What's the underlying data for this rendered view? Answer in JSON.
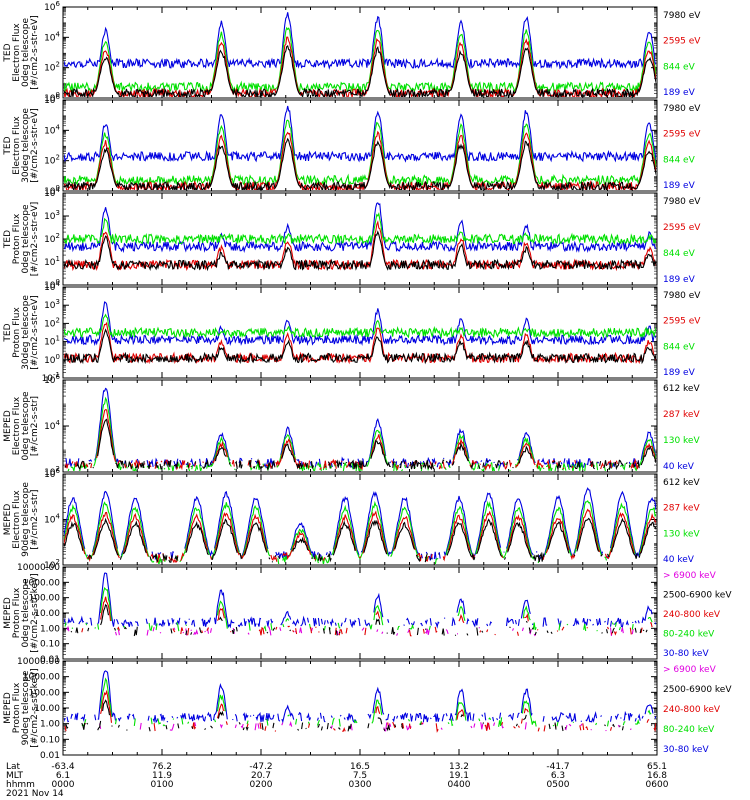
{
  "colors": {
    "black": "#000000",
    "red": "#e00000",
    "green": "#00e000",
    "blue": "#0000e0",
    "magenta": "#e000e0"
  },
  "chart_data": {
    "type": "line",
    "x_axis": {
      "rows": [
        {
          "label": "Lat",
          "values": [
            "-63.4",
            "76.2",
            "-47.2",
            "16.5",
            "13.2",
            "-41.7",
            "65.1"
          ]
        },
        {
          "label": "MLT",
          "values": [
            "6.1",
            "11.9",
            "20.7",
            "7.5",
            "19.1",
            "6.3",
            "16.8"
          ]
        },
        {
          "label": "hhmm",
          "values": [
            "0000",
            "0100",
            "0200",
            "0300",
            "0400",
            "0500",
            "0600"
          ]
        }
      ],
      "date": "2021 Nov 14",
      "range_hours": [
        0,
        6
      ]
    },
    "panels": [
      {
        "ylabel": [
          "TED",
          "Electron Flux",
          "0deg telescope",
          "[#/cm2-s-str-eV]"
        ],
        "scale": "log",
        "ylim": [
          1,
          1000000
        ],
        "ticks": [
          {
            "v": 1,
            "t": "10",
            "e": "0"
          },
          {
            "v": 100,
            "t": "10",
            "e": "2"
          },
          {
            "v": 10000,
            "t": "10",
            "e": "4"
          },
          {
            "v": 1000000,
            "t": "10",
            "e": "6"
          }
        ],
        "legend": [
          {
            "text": "7980 eV",
            "color": "black"
          },
          {
            "text": "2595 eV",
            "color": "red"
          },
          {
            "text": "844 eV",
            "color": "green"
          },
          {
            "text": "189 eV",
            "color": "blue"
          }
        ],
        "peaks": [
          0.43,
          1.6,
          2.27,
          3.18,
          4.02,
          4.68,
          5.92
        ],
        "peakAmp": [
          0.8,
          0.9,
          1.0,
          0.95,
          0.9,
          0.95,
          0.8
        ]
      },
      {
        "ylabel": [
          "TED",
          "Electron Flux",
          "30deg telescope",
          "[#/cm2-s-str-eV]"
        ],
        "scale": "log",
        "ylim": [
          1,
          1000000
        ],
        "ticks": [
          {
            "v": 1,
            "t": "10",
            "e": "0"
          },
          {
            "v": 100,
            "t": "10",
            "e": "2"
          },
          {
            "v": 10000,
            "t": "10",
            "e": "4"
          },
          {
            "v": 1000000,
            "t": "10",
            "e": "6"
          }
        ],
        "legend": [
          {
            "text": "7980 eV",
            "color": "black"
          },
          {
            "text": "2595 eV",
            "color": "red"
          },
          {
            "text": "844 eV",
            "color": "green"
          },
          {
            "text": "189 eV",
            "color": "blue"
          }
        ],
        "peaks": [
          0.43,
          1.6,
          2.27,
          3.18,
          4.02,
          4.68,
          5.92
        ],
        "peakAmp": [
          0.8,
          0.9,
          1.0,
          0.95,
          0.9,
          0.95,
          0.8
        ]
      },
      {
        "ylabel": [
          "TED",
          "Proton Flux",
          "0deg telescope",
          "[#/cm2-s-str-eV]"
        ],
        "scale": "log",
        "ylim": [
          1,
          10000
        ],
        "ticks": [
          {
            "v": 1,
            "t": "10",
            "e": "0"
          },
          {
            "v": 10,
            "t": "10",
            "e": "1"
          },
          {
            "v": 100,
            "t": "10",
            "e": "2"
          },
          {
            "v": 1000,
            "t": "10",
            "e": "3"
          },
          {
            "v": 10000,
            "t": "10",
            "e": "4"
          }
        ],
        "legend": [
          {
            "text": "7980 eV",
            "color": "black"
          },
          {
            "text": "2595 eV",
            "color": "red"
          },
          {
            "text": "844 eV",
            "color": "green"
          },
          {
            "text": "189 eV",
            "color": "blue"
          }
        ],
        "peaks": [
          0.43,
          1.6,
          2.27,
          3.18,
          4.02,
          4.68,
          5.92
        ],
        "peakAmp": [
          0.9,
          0.6,
          0.7,
          1.0,
          0.75,
          0.7,
          0.6
        ]
      },
      {
        "ylabel": [
          "TED",
          "Proton Flux",
          "30deg telescope",
          "[#/cm2-s-str-eV]"
        ],
        "scale": "log",
        "ylim": [
          0.1,
          10000
        ],
        "ticks": [
          {
            "v": 0.1,
            "t": "10",
            "e": "-1"
          },
          {
            "v": 1,
            "t": "10",
            "e": "0"
          },
          {
            "v": 10,
            "t": "10",
            "e": "1"
          },
          {
            "v": 100,
            "t": "10",
            "e": "2"
          },
          {
            "v": 1000,
            "t": "10",
            "e": "3"
          },
          {
            "v": 10000,
            "t": "10",
            "e": "4"
          }
        ],
        "legend": [
          {
            "text": "7980 eV",
            "color": "black"
          },
          {
            "text": "2595 eV",
            "color": "red"
          },
          {
            "text": "844 eV",
            "color": "green"
          },
          {
            "text": "189 eV",
            "color": "blue"
          }
        ],
        "peaks": [
          0.43,
          1.6,
          2.27,
          3.18,
          4.02,
          4.68,
          5.92
        ],
        "peakAmp": [
          0.9,
          0.6,
          0.7,
          0.8,
          0.7,
          0.7,
          0.6
        ]
      },
      {
        "ylabel": [
          "MEPED",
          "Electron Flux",
          "0deg telescope",
          "[#/cm2-s-str]"
        ],
        "scale": "log",
        "ylim": [
          100,
          1000000
        ],
        "ticks": [
          {
            "v": 100,
            "t": "10",
            "e": "2"
          },
          {
            "v": 10000,
            "t": "10",
            "e": "4"
          },
          {
            "v": 1000000,
            "t": "10",
            "e": "6"
          }
        ],
        "legend": [
          {
            "text": "612 keV",
            "color": "black"
          },
          {
            "text": "287 keV",
            "color": "red"
          },
          {
            "text": "130 keV",
            "color": "green"
          },
          {
            "text": "40 keV",
            "color": "blue"
          }
        ],
        "peaks": [
          0.43,
          1.6,
          2.27,
          3.18,
          4.02,
          4.68,
          5.92
        ],
        "peakAmp": [
          1.0,
          0.45,
          0.5,
          0.6,
          0.5,
          0.45,
          0.45
        ]
      },
      {
        "ylabel": [
          "MEPED",
          "Electron Flux",
          "90deg telescope",
          "[#/cm2-s-str]"
        ],
        "scale": "log",
        "ylim": [
          100,
          1000000
        ],
        "ticks": [
          {
            "v": 100,
            "t": "10",
            "e": "2"
          },
          {
            "v": 10000,
            "t": "10",
            "e": "4"
          },
          {
            "v": 1000000,
            "t": "10",
            "e": "6"
          }
        ],
        "legend": [
          {
            "text": "612 keV",
            "color": "black"
          },
          {
            "text": "287 keV",
            "color": "red"
          },
          {
            "text": "130 keV",
            "color": "green"
          },
          {
            "text": "40 keV",
            "color": "blue"
          }
        ],
        "peaks": [
          0.1,
          0.43,
          0.73,
          1.35,
          1.65,
          1.95,
          2.4,
          2.85,
          3.15,
          3.45,
          4.0,
          4.3,
          4.6,
          5.0,
          5.3,
          5.65,
          5.95
        ],
        "peakAmp": [
          0.8,
          0.85,
          0.8,
          0.8,
          0.85,
          0.8,
          0.5,
          0.8,
          0.85,
          0.8,
          0.8,
          0.85,
          0.8,
          0.8,
          0.9,
          0.85,
          0.8
        ]
      },
      {
        "ylabel": [
          "MEPED",
          "Proton Flux",
          "0deg telescope",
          "[#/cm2-s-str-keV]"
        ],
        "scale": "log",
        "ylim": [
          0.01,
          10000
        ],
        "ticks": [
          {
            "v": 0.01,
            "t": "0.01"
          },
          {
            "v": 0.1,
            "t": "0.10"
          },
          {
            "v": 1,
            "t": "1.00"
          },
          {
            "v": 10,
            "t": "10.00"
          },
          {
            "v": 100,
            "t": "100.00"
          },
          {
            "v": 1000,
            "t": "1000.00"
          },
          {
            "v": 10000,
            "t": "10000.00"
          }
        ],
        "legend": [
          {
            "text": "> 6900 keV",
            "color": "magenta"
          },
          {
            "text": "2500-6900 keV",
            "color": "black"
          },
          {
            "text": "240-800 keV",
            "color": "red"
          },
          {
            "text": "80-240 keV",
            "color": "green"
          },
          {
            "text": "30-80 keV",
            "color": "blue"
          }
        ],
        "peaks": [
          0.43,
          1.6,
          2.27,
          3.18,
          4.02,
          4.68,
          5.92
        ],
        "peakAmp": [
          1.0,
          0.8,
          0.55,
          0.75,
          0.7,
          0.7,
          0.6
        ]
      },
      {
        "ylabel": [
          "MEPED",
          "Proton Flux",
          "90deg telescope",
          "[#/cm2-s-str-keV]"
        ],
        "scale": "log",
        "ylim": [
          0.01,
          10000
        ],
        "ticks": [
          {
            "v": 0.01,
            "t": "0.01"
          },
          {
            "v": 0.1,
            "t": "0.10"
          },
          {
            "v": 1,
            "t": "1.00"
          },
          {
            "v": 10,
            "t": "10.00"
          },
          {
            "v": 100,
            "t": "100.00"
          },
          {
            "v": 1000,
            "t": "1000.00"
          },
          {
            "v": 10000,
            "t": "10000.00"
          }
        ],
        "legend": [
          {
            "text": "> 6900 keV",
            "color": "magenta"
          },
          {
            "text": "2500-6900 keV",
            "color": "black"
          },
          {
            "text": "240-800 keV",
            "color": "red"
          },
          {
            "text": "80-240 keV",
            "color": "green"
          },
          {
            "text": "30-80 keV",
            "color": "blue"
          }
        ],
        "peaks": [
          0.43,
          1.6,
          2.27,
          3.18,
          4.02,
          4.68,
          5.92
        ],
        "peakAmp": [
          1.0,
          0.8,
          0.55,
          0.75,
          0.75,
          0.75,
          0.6
        ]
      }
    ]
  }
}
